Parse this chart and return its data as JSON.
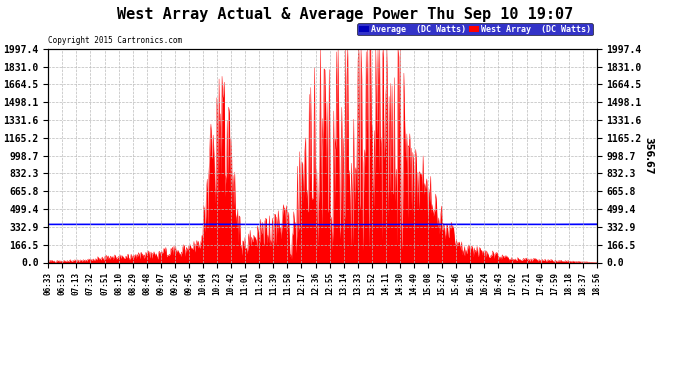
{
  "title": "West Array Actual & Average Power Thu Sep 10 19:07",
  "copyright": "Copyright 2015 Cartronics.com",
  "legend_avg": "Average  (DC Watts)",
  "legend_west": "West Array  (DC Watts)",
  "ymax": 1997.4,
  "ymin": 0.0,
  "yticks": [
    0.0,
    166.5,
    332.9,
    499.4,
    665.8,
    832.3,
    998.7,
    1165.2,
    1331.6,
    1498.1,
    1664.5,
    1831.0,
    1997.4
  ],
  "hline_y": 356.67,
  "hline_label": "356.67",
  "title_fontsize": 11,
  "axis_bg": "#ffffff",
  "grid_color": "#bbbbbb",
  "fill_color": "#ff0000",
  "line_color": "#ff0000",
  "avg_color": "#0000ff",
  "x_time_labels": [
    "06:33",
    "06:53",
    "07:13",
    "07:32",
    "07:51",
    "08:10",
    "08:29",
    "08:48",
    "09:07",
    "09:26",
    "09:45",
    "10:04",
    "10:23",
    "10:42",
    "11:01",
    "11:20",
    "11:39",
    "11:58",
    "12:17",
    "12:36",
    "12:55",
    "13:14",
    "13:33",
    "13:52",
    "14:11",
    "14:30",
    "14:49",
    "15:08",
    "15:27",
    "15:46",
    "16:05",
    "16:24",
    "16:43",
    "17:02",
    "17:21",
    "17:40",
    "17:59",
    "18:18",
    "18:37",
    "18:56"
  ]
}
